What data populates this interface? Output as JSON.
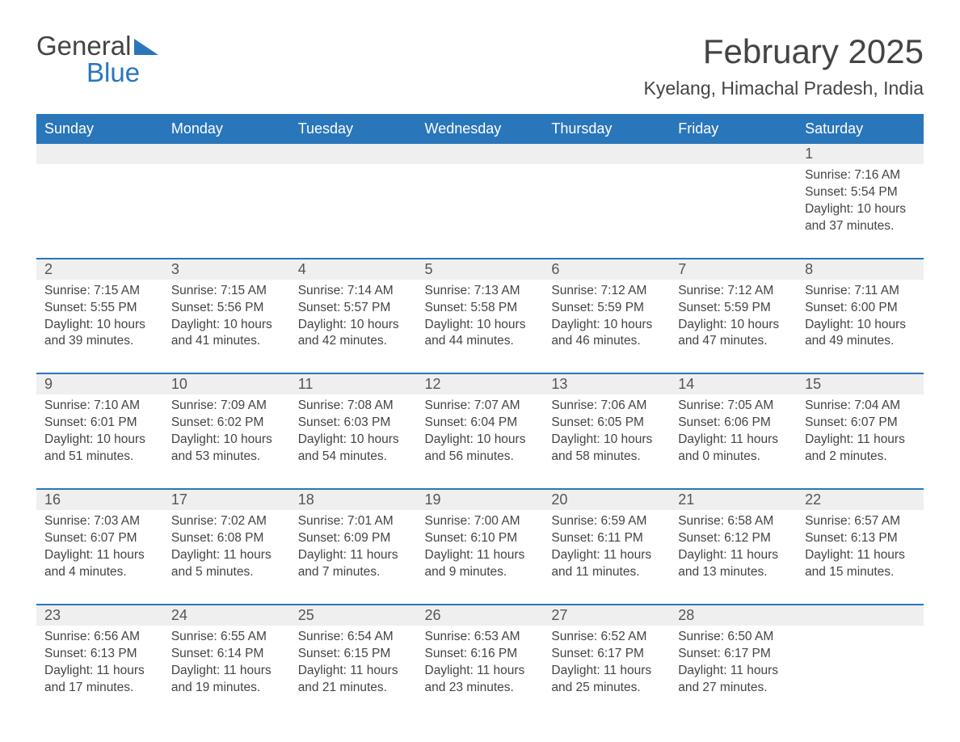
{
  "logo": {
    "text1": "General",
    "text2": "Blue"
  },
  "title": "February 2025",
  "location": "Kyelang, Himachal Pradesh, India",
  "colors": {
    "header_bg": "#2a76bb",
    "header_text": "#ffffff",
    "daynum_bg": "#efefef",
    "border_top": "#2a76bb",
    "text": "#444444",
    "logo_blue": "#2a76bb"
  },
  "typography": {
    "title_fontsize": 42,
    "location_fontsize": 23,
    "header_fontsize": 18,
    "daynum_fontsize": 18,
    "cell_fontsize": 15.5
  },
  "weekdays": [
    "Sunday",
    "Monday",
    "Tuesday",
    "Wednesday",
    "Thursday",
    "Friday",
    "Saturday"
  ],
  "weeks": [
    [
      null,
      null,
      null,
      null,
      null,
      null,
      {
        "n": "1",
        "sunrise": "Sunrise: 7:16 AM",
        "sunset": "Sunset: 5:54 PM",
        "daylight": "Daylight: 10 hours and 37 minutes."
      }
    ],
    [
      {
        "n": "2",
        "sunrise": "Sunrise: 7:15 AM",
        "sunset": "Sunset: 5:55 PM",
        "daylight": "Daylight: 10 hours and 39 minutes."
      },
      {
        "n": "3",
        "sunrise": "Sunrise: 7:15 AM",
        "sunset": "Sunset: 5:56 PM",
        "daylight": "Daylight: 10 hours and 41 minutes."
      },
      {
        "n": "4",
        "sunrise": "Sunrise: 7:14 AM",
        "sunset": "Sunset: 5:57 PM",
        "daylight": "Daylight: 10 hours and 42 minutes."
      },
      {
        "n": "5",
        "sunrise": "Sunrise: 7:13 AM",
        "sunset": "Sunset: 5:58 PM",
        "daylight": "Daylight: 10 hours and 44 minutes."
      },
      {
        "n": "6",
        "sunrise": "Sunrise: 7:12 AM",
        "sunset": "Sunset: 5:59 PM",
        "daylight": "Daylight: 10 hours and 46 minutes."
      },
      {
        "n": "7",
        "sunrise": "Sunrise: 7:12 AM",
        "sunset": "Sunset: 5:59 PM",
        "daylight": "Daylight: 10 hours and 47 minutes."
      },
      {
        "n": "8",
        "sunrise": "Sunrise: 7:11 AM",
        "sunset": "Sunset: 6:00 PM",
        "daylight": "Daylight: 10 hours and 49 minutes."
      }
    ],
    [
      {
        "n": "9",
        "sunrise": "Sunrise: 7:10 AM",
        "sunset": "Sunset: 6:01 PM",
        "daylight": "Daylight: 10 hours and 51 minutes."
      },
      {
        "n": "10",
        "sunrise": "Sunrise: 7:09 AM",
        "sunset": "Sunset: 6:02 PM",
        "daylight": "Daylight: 10 hours and 53 minutes."
      },
      {
        "n": "11",
        "sunrise": "Sunrise: 7:08 AM",
        "sunset": "Sunset: 6:03 PM",
        "daylight": "Daylight: 10 hours and 54 minutes."
      },
      {
        "n": "12",
        "sunrise": "Sunrise: 7:07 AM",
        "sunset": "Sunset: 6:04 PM",
        "daylight": "Daylight: 10 hours and 56 minutes."
      },
      {
        "n": "13",
        "sunrise": "Sunrise: 7:06 AM",
        "sunset": "Sunset: 6:05 PM",
        "daylight": "Daylight: 10 hours and 58 minutes."
      },
      {
        "n": "14",
        "sunrise": "Sunrise: 7:05 AM",
        "sunset": "Sunset: 6:06 PM",
        "daylight": "Daylight: 11 hours and 0 minutes."
      },
      {
        "n": "15",
        "sunrise": "Sunrise: 7:04 AM",
        "sunset": "Sunset: 6:07 PM",
        "daylight": "Daylight: 11 hours and 2 minutes."
      }
    ],
    [
      {
        "n": "16",
        "sunrise": "Sunrise: 7:03 AM",
        "sunset": "Sunset: 6:07 PM",
        "daylight": "Daylight: 11 hours and 4 minutes."
      },
      {
        "n": "17",
        "sunrise": "Sunrise: 7:02 AM",
        "sunset": "Sunset: 6:08 PM",
        "daylight": "Daylight: 11 hours and 5 minutes."
      },
      {
        "n": "18",
        "sunrise": "Sunrise: 7:01 AM",
        "sunset": "Sunset: 6:09 PM",
        "daylight": "Daylight: 11 hours and 7 minutes."
      },
      {
        "n": "19",
        "sunrise": "Sunrise: 7:00 AM",
        "sunset": "Sunset: 6:10 PM",
        "daylight": "Daylight: 11 hours and 9 minutes."
      },
      {
        "n": "20",
        "sunrise": "Sunrise: 6:59 AM",
        "sunset": "Sunset: 6:11 PM",
        "daylight": "Daylight: 11 hours and 11 minutes."
      },
      {
        "n": "21",
        "sunrise": "Sunrise: 6:58 AM",
        "sunset": "Sunset: 6:12 PM",
        "daylight": "Daylight: 11 hours and 13 minutes."
      },
      {
        "n": "22",
        "sunrise": "Sunrise: 6:57 AM",
        "sunset": "Sunset: 6:13 PM",
        "daylight": "Daylight: 11 hours and 15 minutes."
      }
    ],
    [
      {
        "n": "23",
        "sunrise": "Sunrise: 6:56 AM",
        "sunset": "Sunset: 6:13 PM",
        "daylight": "Daylight: 11 hours and 17 minutes."
      },
      {
        "n": "24",
        "sunrise": "Sunrise: 6:55 AM",
        "sunset": "Sunset: 6:14 PM",
        "daylight": "Daylight: 11 hours and 19 minutes."
      },
      {
        "n": "25",
        "sunrise": "Sunrise: 6:54 AM",
        "sunset": "Sunset: 6:15 PM",
        "daylight": "Daylight: 11 hours and 21 minutes."
      },
      {
        "n": "26",
        "sunrise": "Sunrise: 6:53 AM",
        "sunset": "Sunset: 6:16 PM",
        "daylight": "Daylight: 11 hours and 23 minutes."
      },
      {
        "n": "27",
        "sunrise": "Sunrise: 6:52 AM",
        "sunset": "Sunset: 6:17 PM",
        "daylight": "Daylight: 11 hours and 25 minutes."
      },
      {
        "n": "28",
        "sunrise": "Sunrise: 6:50 AM",
        "sunset": "Sunset: 6:17 PM",
        "daylight": "Daylight: 11 hours and 27 minutes."
      },
      null
    ]
  ]
}
